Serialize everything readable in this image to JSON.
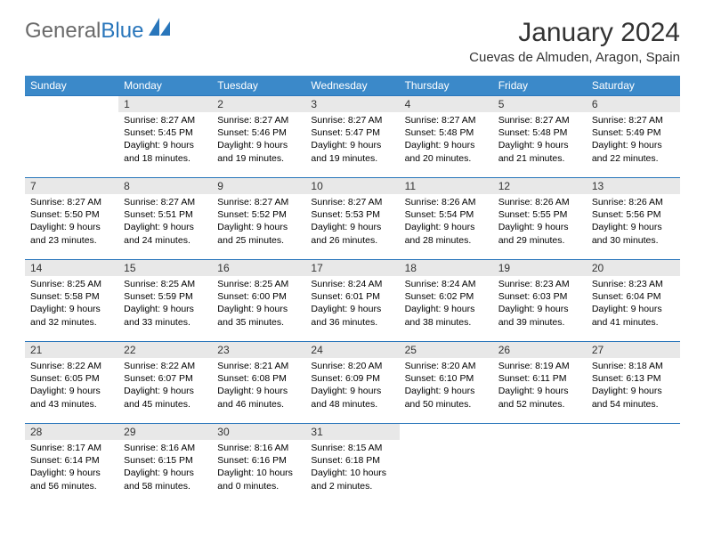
{
  "brand": {
    "part1": "General",
    "part2": "Blue"
  },
  "title": "January 2024",
  "location": "Cuevas de Almuden, Aragon, Spain",
  "colors": {
    "header_bg": "#3b89c9",
    "header_text": "#ffffff",
    "daynum_bg": "#e8e8e8",
    "rule": "#2976bb",
    "brand_grey": "#6a6a6a",
    "brand_blue": "#2976bb"
  },
  "weekdays": [
    "Sunday",
    "Monday",
    "Tuesday",
    "Wednesday",
    "Thursday",
    "Friday",
    "Saturday"
  ],
  "start_offset": 1,
  "days": [
    {
      "n": 1,
      "sr": "8:27 AM",
      "ss": "5:45 PM",
      "dl": "9 hours and 18 minutes."
    },
    {
      "n": 2,
      "sr": "8:27 AM",
      "ss": "5:46 PM",
      "dl": "9 hours and 19 minutes."
    },
    {
      "n": 3,
      "sr": "8:27 AM",
      "ss": "5:47 PM",
      "dl": "9 hours and 19 minutes."
    },
    {
      "n": 4,
      "sr": "8:27 AM",
      "ss": "5:48 PM",
      "dl": "9 hours and 20 minutes."
    },
    {
      "n": 5,
      "sr": "8:27 AM",
      "ss": "5:48 PM",
      "dl": "9 hours and 21 minutes."
    },
    {
      "n": 6,
      "sr": "8:27 AM",
      "ss": "5:49 PM",
      "dl": "9 hours and 22 minutes."
    },
    {
      "n": 7,
      "sr": "8:27 AM",
      "ss": "5:50 PM",
      "dl": "9 hours and 23 minutes."
    },
    {
      "n": 8,
      "sr": "8:27 AM",
      "ss": "5:51 PM",
      "dl": "9 hours and 24 minutes."
    },
    {
      "n": 9,
      "sr": "8:27 AM",
      "ss": "5:52 PM",
      "dl": "9 hours and 25 minutes."
    },
    {
      "n": 10,
      "sr": "8:27 AM",
      "ss": "5:53 PM",
      "dl": "9 hours and 26 minutes."
    },
    {
      "n": 11,
      "sr": "8:26 AM",
      "ss": "5:54 PM",
      "dl": "9 hours and 28 minutes."
    },
    {
      "n": 12,
      "sr": "8:26 AM",
      "ss": "5:55 PM",
      "dl": "9 hours and 29 minutes."
    },
    {
      "n": 13,
      "sr": "8:26 AM",
      "ss": "5:56 PM",
      "dl": "9 hours and 30 minutes."
    },
    {
      "n": 14,
      "sr": "8:25 AM",
      "ss": "5:58 PM",
      "dl": "9 hours and 32 minutes."
    },
    {
      "n": 15,
      "sr": "8:25 AM",
      "ss": "5:59 PM",
      "dl": "9 hours and 33 minutes."
    },
    {
      "n": 16,
      "sr": "8:25 AM",
      "ss": "6:00 PM",
      "dl": "9 hours and 35 minutes."
    },
    {
      "n": 17,
      "sr": "8:24 AM",
      "ss": "6:01 PM",
      "dl": "9 hours and 36 minutes."
    },
    {
      "n": 18,
      "sr": "8:24 AM",
      "ss": "6:02 PM",
      "dl": "9 hours and 38 minutes."
    },
    {
      "n": 19,
      "sr": "8:23 AM",
      "ss": "6:03 PM",
      "dl": "9 hours and 39 minutes."
    },
    {
      "n": 20,
      "sr": "8:23 AM",
      "ss": "6:04 PM",
      "dl": "9 hours and 41 minutes."
    },
    {
      "n": 21,
      "sr": "8:22 AM",
      "ss": "6:05 PM",
      "dl": "9 hours and 43 minutes."
    },
    {
      "n": 22,
      "sr": "8:22 AM",
      "ss": "6:07 PM",
      "dl": "9 hours and 45 minutes."
    },
    {
      "n": 23,
      "sr": "8:21 AM",
      "ss": "6:08 PM",
      "dl": "9 hours and 46 minutes."
    },
    {
      "n": 24,
      "sr": "8:20 AM",
      "ss": "6:09 PM",
      "dl": "9 hours and 48 minutes."
    },
    {
      "n": 25,
      "sr": "8:20 AM",
      "ss": "6:10 PM",
      "dl": "9 hours and 50 minutes."
    },
    {
      "n": 26,
      "sr": "8:19 AM",
      "ss": "6:11 PM",
      "dl": "9 hours and 52 minutes."
    },
    {
      "n": 27,
      "sr": "8:18 AM",
      "ss": "6:13 PM",
      "dl": "9 hours and 54 minutes."
    },
    {
      "n": 28,
      "sr": "8:17 AM",
      "ss": "6:14 PM",
      "dl": "9 hours and 56 minutes."
    },
    {
      "n": 29,
      "sr": "8:16 AM",
      "ss": "6:15 PM",
      "dl": "9 hours and 58 minutes."
    },
    {
      "n": 30,
      "sr": "8:16 AM",
      "ss": "6:16 PM",
      "dl": "10 hours and 0 minutes."
    },
    {
      "n": 31,
      "sr": "8:15 AM",
      "ss": "6:18 PM",
      "dl": "10 hours and 2 minutes."
    }
  ],
  "labels": {
    "sunrise": "Sunrise:",
    "sunset": "Sunset:",
    "daylight": "Daylight:"
  }
}
